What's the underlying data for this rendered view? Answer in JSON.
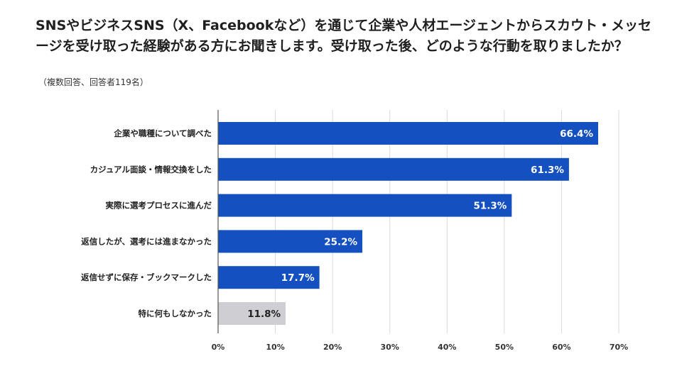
{
  "title": "SNSやビジネスSNS（X、Facebookなど）を通じて企業や人材エージェントからスカウト・メッセージを受け取った経験がある方にお聞きします。受け取った後、どのような行動を取りましたか？",
  "subtitle": "（複数回答、回答者119名）",
  "colors": {
    "primary_bar": "#1550c0",
    "muted_bar": "#cfcfd3",
    "gridline": "#d9d9d9",
    "axis": "#555555"
  },
  "chart_data": {
    "type": "bar",
    "orientation": "horizontal",
    "categories": [
      "企業や職種について調べた",
      "カジュアル面談・情報交換をした",
      "実際に選考プロセスに進んだ",
      "返信したが、選考には進まなかった",
      "返信せずに保存・ブックマークした",
      "特に何もしなかった"
    ],
    "values": [
      66.4,
      61.3,
      51.3,
      25.2,
      17.7,
      11.8
    ],
    "value_labels": [
      "66.4%",
      "61.3%",
      "51.3%",
      "25.2%",
      "17.7%",
      "11.8%"
    ],
    "xlim": [
      0,
      70
    ],
    "xticks": [
      0,
      10,
      20,
      30,
      40,
      50,
      60,
      70
    ],
    "xtick_labels": [
      "0%",
      "10%",
      "20%",
      "30%",
      "40%",
      "50%",
      "60%",
      "70%"
    ],
    "grid": true,
    "muted_categories": [
      "特に何もしなかった"
    ]
  }
}
